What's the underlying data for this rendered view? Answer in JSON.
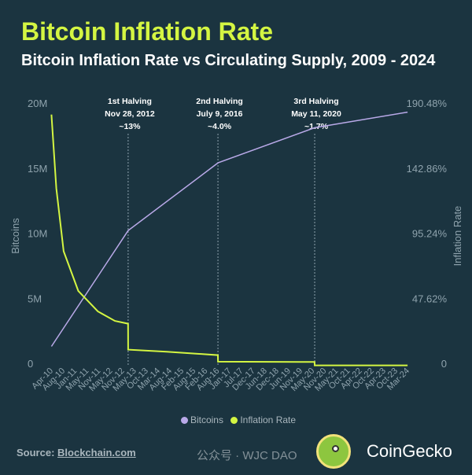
{
  "header": {
    "title": "Bitcoin Inflation Rate",
    "subtitle": "Bitcoin Inflation Rate vs Circulating Supply, 2009 - 2024"
  },
  "chart_data": {
    "type": "line",
    "title": "Bitcoin Inflation Rate vs Circulating Supply, 2009 - 2024",
    "ylabel": "Bitcoins",
    "y2label": "Inflation Rate",
    "ylim": [
      0,
      20000000
    ],
    "y2lim": [
      0,
      190.48
    ],
    "yticks": [
      "0",
      "5M",
      "10M",
      "15M",
      "20M"
    ],
    "y2ticks": [
      "0",
      "47.62%",
      "95.24%",
      "142.86%",
      "190.48%"
    ],
    "xticks": [
      "Apr-10",
      "Aug-10",
      "Jan-11",
      "May-11",
      "Nov-11",
      "May-12",
      "Nov-12",
      "May-13",
      "Oct-13",
      "Mar-14",
      "Aug-14",
      "Feb-15",
      "Aug-15",
      "Feb-16",
      "Aug-16",
      "Jan-17",
      "Jul-17",
      "Dec-17",
      "Jun-18",
      "Dec-18",
      "Jun-19",
      "Nov-19",
      "May-20",
      "Nov-20",
      "May-21",
      "Oct-21",
      "Apr-22",
      "Oct-22",
      "Apr-23",
      "Oct-23",
      "Mar-24"
    ],
    "legend_position": "bottom",
    "grid": false,
    "series": [
      {
        "name": "Bitcoins",
        "color": "#b9a9e8",
        "axis": "left",
        "points": [
          [
            "2010-04",
            1300000
          ],
          [
            "2012-11-28",
            10200000
          ],
          [
            "2016-07-09",
            15400000
          ],
          [
            "2020-05-11",
            18100000
          ],
          [
            "2024-03",
            19300000
          ]
        ]
      },
      {
        "name": "Inflation Rate",
        "color": "#d4f542",
        "axis": "right",
        "points": [
          [
            "2010-04",
            182
          ],
          [
            "2010-06",
            128
          ],
          [
            "2010-09",
            82
          ],
          [
            "2011-03",
            53
          ],
          [
            "2011-11",
            38
          ],
          [
            "2012-06",
            31
          ],
          [
            "2012-11-27",
            29
          ],
          [
            "2012-11-28",
            10
          ],
          [
            "2014-06",
            8.5
          ],
          [
            "2016-07-08",
            6
          ],
          [
            "2016-07-09",
            1.2
          ],
          [
            "2020-05-10",
            1
          ],
          [
            "2020-05-11",
            -1.5
          ],
          [
            "2024-03",
            -1.5
          ]
        ]
      }
    ],
    "annotations": [
      {
        "lines": [
          "1st Halving",
          "Nov 28, 2012",
          "~13%"
        ],
        "date": "2012-11-28"
      },
      {
        "lines": [
          "2nd Halving",
          "July 9, 2016",
          "~4.0%"
        ],
        "date": "2016-07-09"
      },
      {
        "lines": [
          "3rd Halving",
          "May 11, 2020",
          "~1.7%"
        ],
        "date": "2020-05-11"
      }
    ]
  },
  "legend": {
    "items": [
      {
        "label": "Bitcoins",
        "color": "#b9a9e8"
      },
      {
        "label": "Inflation Rate",
        "color": "#d4f542"
      }
    ]
  },
  "footer": {
    "source_label": "Source:",
    "source_link": "Blockchain.com",
    "brand": "CoinGecko",
    "watermark": "公众号 · WJC DAO"
  }
}
